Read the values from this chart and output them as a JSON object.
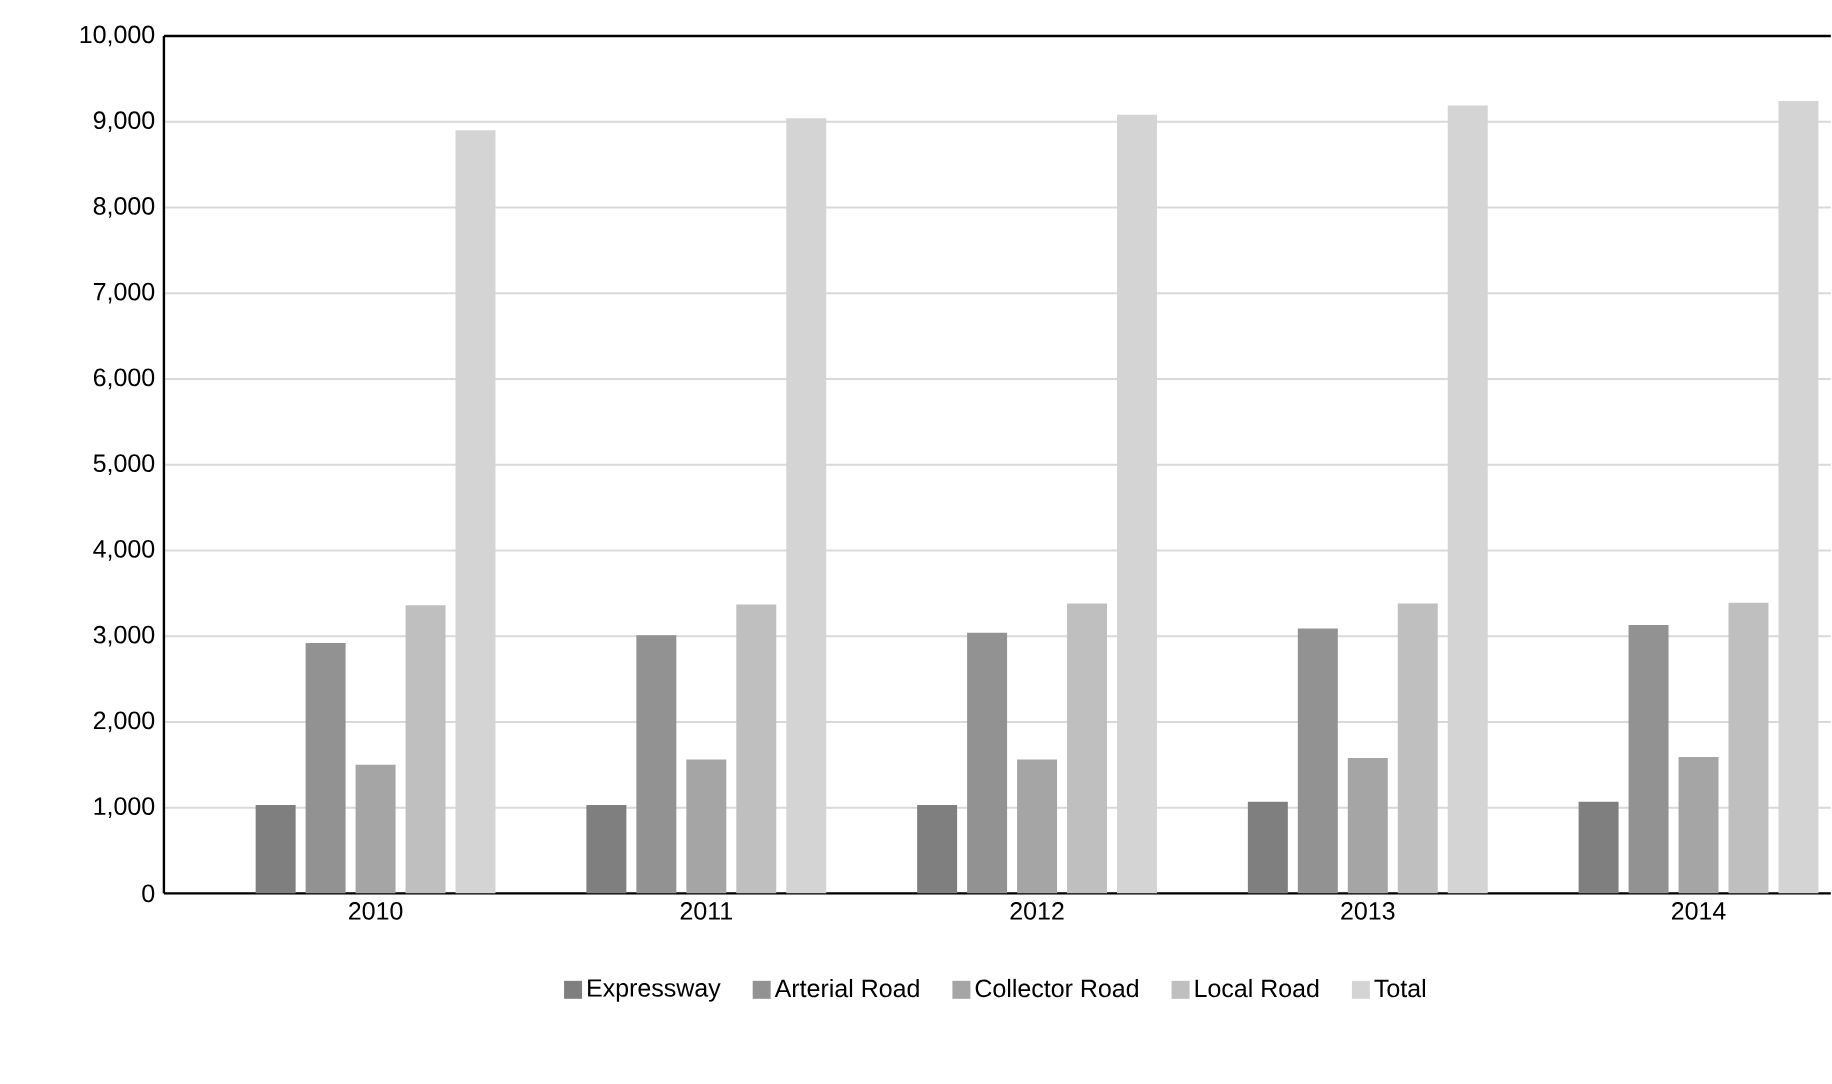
{
  "chart_data": {
    "type": "bar",
    "categories": [
      "2010",
      "2011",
      "2012",
      "2013",
      "2014"
    ],
    "series": [
      {
        "name": "Expressway",
        "color": "#7f7f7f",
        "values": [
          1030,
          1030,
          1030,
          1070,
          1070
        ]
      },
      {
        "name": "Arterial Road",
        "color": "#929292",
        "values": [
          2920,
          3010,
          3040,
          3090,
          3130
        ]
      },
      {
        "name": "Collector Road",
        "color": "#a5a5a5",
        "values": [
          1500,
          1560,
          1560,
          1580,
          1590
        ]
      },
      {
        "name": "Local Road",
        "color": "#bfbfbf",
        "values": [
          3360,
          3370,
          3380,
          3380,
          3390
        ]
      },
      {
        "name": "Total",
        "color": "#d4d4d4",
        "values": [
          8900,
          9040,
          9080,
          9190,
          9240
        ]
      }
    ],
    "ylim": [
      0,
      10000
    ],
    "yticks": [
      {
        "value": 0,
        "label": "0"
      },
      {
        "value": 1000,
        "label": "1,000"
      },
      {
        "value": 2000,
        "label": "2,000"
      },
      {
        "value": 3000,
        "label": "3,000"
      },
      {
        "value": 4000,
        "label": "4,000"
      },
      {
        "value": 5000,
        "label": "5,000"
      },
      {
        "value": 6000,
        "label": "6,000"
      },
      {
        "value": 7000,
        "label": "7,000"
      },
      {
        "value": 8000,
        "label": "8,000"
      },
      {
        "value": 9000,
        "label": "9,000"
      },
      {
        "value": 10000,
        "label": "10,000"
      }
    ],
    "grid": "y",
    "legend": "bottom"
  }
}
